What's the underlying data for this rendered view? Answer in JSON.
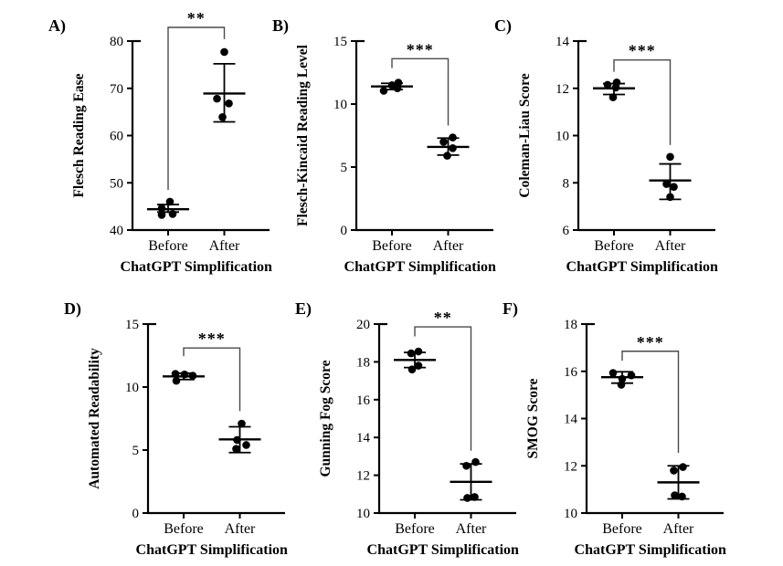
{
  "figure": {
    "background": "#ffffff",
    "colors": {
      "points": "#000000",
      "axes": "#000000",
      "bracket": "#4a4a4a",
      "text": "#000000"
    },
    "xlabel_shared": "ChatGPT Simplification",
    "categories_shared": [
      "Before",
      "After"
    ]
  },
  "chart_data": [
    {
      "panel_label": "A)",
      "type": "scatter",
      "ylabel": "Flesch Reading Ease",
      "xlabel": "ChatGPT Simplification",
      "ylim": [
        40,
        80
      ],
      "yticks": [
        40,
        50,
        60,
        70,
        80
      ],
      "categories": [
        "Before",
        "After"
      ],
      "significance": "**",
      "bracket": {
        "top": 82.9,
        "left_bottom": 48.5,
        "right_bottom": 80.4
      },
      "series": [
        {
          "name": "Before",
          "points": [
            [
              2,
              46.0
            ],
            [
              -7,
              44.6
            ],
            [
              -7,
              43.2
            ],
            [
              5,
              43.4
            ]
          ],
          "mean": 44.4,
          "sd_low": 43.8,
          "sd_high": 45.4
        },
        {
          "name": "After",
          "points": [
            [
              0,
              77.7
            ],
            [
              -8,
              67.8
            ],
            [
              5,
              66.8
            ],
            [
              -2,
              63.9
            ]
          ],
          "mean": 68.9,
          "sd_low": 62.9,
          "sd_high": 75.2
        }
      ]
    },
    {
      "panel_label": "B)",
      "type": "scatter",
      "ylabel": "Flesch-Kincaid Reading Level",
      "xlabel": "ChatGPT Simplification",
      "ylim": [
        0,
        15
      ],
      "yticks": [
        0,
        5,
        10,
        15
      ],
      "categories": [
        "Before",
        "After"
      ],
      "significance": "***",
      "bracket": {
        "top": 13.6,
        "left_bottom": 12.85,
        "right_bottom": 8.3
      },
      "series": [
        {
          "name": "Before",
          "points": [
            [
              7,
              11.7
            ],
            [
              0,
              11.5
            ],
            [
              6,
              11.25
            ],
            [
              -9,
              11.05
            ]
          ],
          "mean": 11.4,
          "sd_low": 11.15,
          "sd_high": 11.65
        },
        {
          "name": "After",
          "points": [
            [
              -5,
              7.0
            ],
            [
              5,
              7.35
            ],
            [
              5,
              6.5
            ],
            [
              -1,
              5.9
            ]
          ],
          "mean": 6.6,
          "sd_low": 5.95,
          "sd_high": 7.3
        }
      ]
    },
    {
      "panel_label": "C)",
      "type": "scatter",
      "ylabel": "Coleman-Liau Score",
      "xlabel": "ChatGPT Simplification",
      "ylim": [
        6,
        14
      ],
      "yticks": [
        6,
        8,
        10,
        12,
        14
      ],
      "categories": [
        "Before",
        "After"
      ],
      "significance": "***",
      "bracket": {
        "top": 13.2,
        "left_bottom": 12.7,
        "right_bottom": 9.6
      },
      "series": [
        {
          "name": "Before",
          "points": [
            [
              -7,
              12.15
            ],
            [
              3,
              12.25
            ],
            [
              2,
              12.03
            ],
            [
              -1,
              11.62
            ]
          ],
          "mean": 12.0,
          "sd_low": 11.74,
          "sd_high": 12.2
        },
        {
          "name": "After",
          "points": [
            [
              0,
              9.1
            ],
            [
              -4,
              7.95
            ],
            [
              4,
              7.83
            ],
            [
              0,
              7.4
            ]
          ],
          "mean": 8.1,
          "sd_low": 7.3,
          "sd_high": 8.8
        }
      ]
    },
    {
      "panel_label": "D)",
      "type": "scatter",
      "ylabel": "Automated Readability",
      "xlabel": "ChatGPT Simplification",
      "ylim": [
        0,
        15
      ],
      "yticks": [
        0,
        5,
        10,
        15
      ],
      "categories": [
        "Before",
        "After"
      ],
      "significance": "***",
      "bracket": {
        "top": 13.1,
        "left_bottom": 12.45,
        "right_bottom": 8.1
      },
      "series": [
        {
          "name": "Before",
          "points": [
            [
              -9,
              11.05
            ],
            [
              1,
              11.0
            ],
            [
              10,
              10.9
            ],
            [
              -8,
              10.5
            ]
          ],
          "mean": 10.85,
          "sd_low": 10.6,
          "sd_high": 11.1
        },
        {
          "name": "After",
          "points": [
            [
              2,
              7.1
            ],
            [
              -3,
              5.8
            ],
            [
              7,
              5.4
            ],
            [
              -4,
              5.1
            ]
          ],
          "mean": 5.85,
          "sd_low": 4.8,
          "sd_high": 6.85
        }
      ]
    },
    {
      "panel_label": "E)",
      "type": "scatter",
      "ylabel": "Gunning Fog Score",
      "xlabel": "ChatGPT Simplification",
      "ylim": [
        10,
        20
      ],
      "yticks": [
        10,
        12,
        14,
        16,
        18,
        20
      ],
      "categories": [
        "Before",
        "After"
      ],
      "significance": "**",
      "bracket": {
        "top": 19.85,
        "left_bottom": 19.35,
        "right_bottom": 13.3
      },
      "series": [
        {
          "name": "Before",
          "points": [
            [
              -4,
              18.45
            ],
            [
              4,
              18.55
            ],
            [
              -3,
              17.6
            ],
            [
              4,
              17.8
            ]
          ],
          "mean": 18.1,
          "sd_low": 17.7,
          "sd_high": 18.5
        },
        {
          "name": "After",
          "points": [
            [
              -5,
              12.5
            ],
            [
              5,
              12.7
            ],
            [
              -4,
              10.8
            ],
            [
              4,
              10.85
            ]
          ],
          "mean": 11.65,
          "sd_low": 10.7,
          "sd_high": 12.6
        }
      ]
    },
    {
      "panel_label": "F)",
      "type": "scatter",
      "ylabel": "SMOG Score",
      "xlabel": "ChatGPT Simplification",
      "ylim": [
        10,
        18
      ],
      "yticks": [
        10,
        12,
        14,
        16,
        18
      ],
      "categories": [
        "Before",
        "After"
      ],
      "significance": "***",
      "bracket": {
        "top": 16.85,
        "left_bottom": 16.45,
        "right_bottom": 12.55
      },
      "series": [
        {
          "name": "Before",
          "points": [
            [
              -10,
              15.93
            ],
            [
              10,
              15.83
            ],
            [
              0,
              15.68
            ],
            [
              -1,
              15.43
            ]
          ],
          "mean": 15.75,
          "sd_low": 15.5,
          "sd_high": 15.98
        },
        {
          "name": "After",
          "points": [
            [
              -5,
              11.8
            ],
            [
              5,
              11.95
            ],
            [
              -4,
              10.75
            ],
            [
              4,
              10.7
            ]
          ],
          "mean": 11.3,
          "sd_low": 10.6,
          "sd_high": 12.0
        }
      ]
    }
  ]
}
